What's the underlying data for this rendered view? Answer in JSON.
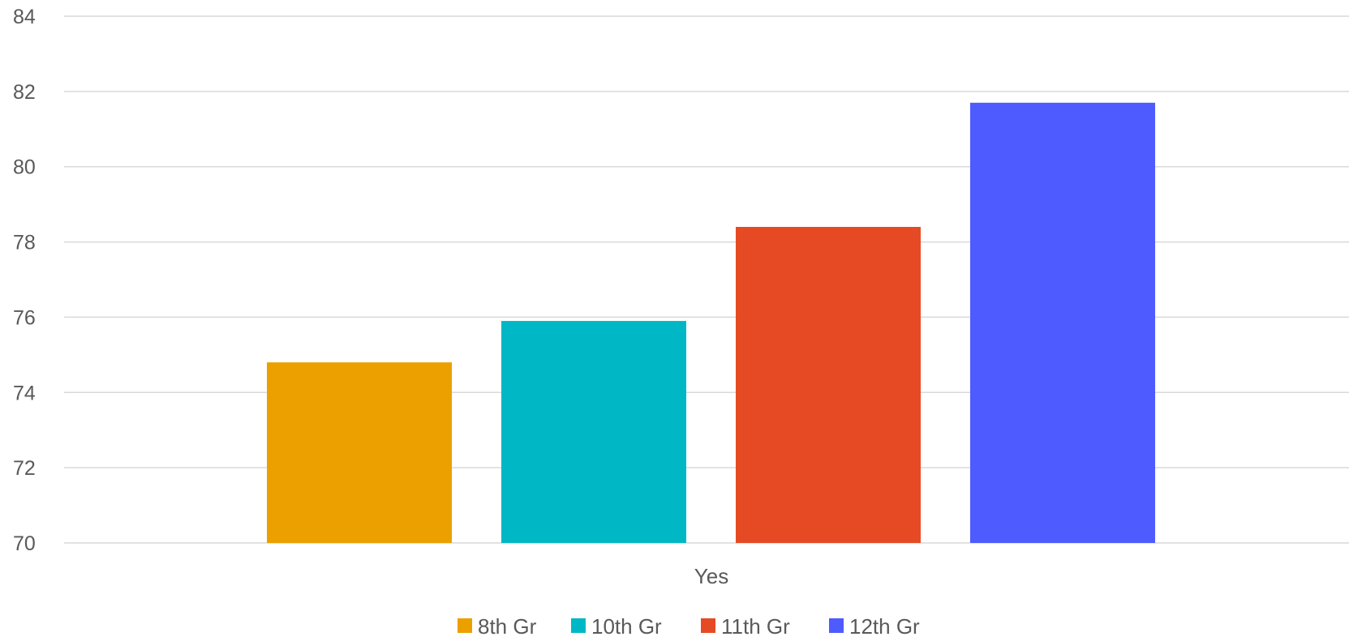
{
  "chart_data": {
    "type": "bar",
    "categories": [
      "Yes"
    ],
    "series": [
      {
        "name": "8th Gr",
        "values": [
          74.8
        ],
        "color": "#EBA000"
      },
      {
        "name": "10th Gr",
        "values": [
          75.9
        ],
        "color": "#00B8C5"
      },
      {
        "name": "11th Gr",
        "values": [
          78.4
        ],
        "color": "#E64A24"
      },
      {
        "name": "12th Gr",
        "values": [
          81.7
        ],
        "color": "#4E5BFF"
      }
    ],
    "title": "",
    "xlabel": "",
    "ylabel": "",
    "ylim": [
      70,
      84
    ],
    "yticks": [
      70,
      72,
      74,
      76,
      78,
      80,
      82,
      84
    ],
    "grid": true,
    "legend_position": "bottom"
  }
}
